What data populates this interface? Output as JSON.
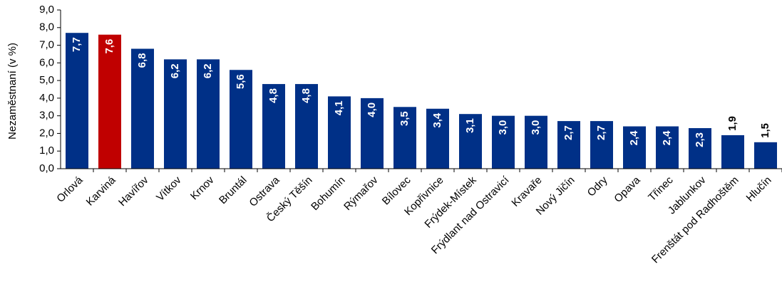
{
  "chart_data": {
    "type": "bar",
    "title": "",
    "xlabel": "",
    "ylabel": "Nezaměstnaní (v %)",
    "ylim": [
      0,
      9
    ],
    "ytick_step": 1,
    "ytick_labels": [
      "0,0",
      "1,0",
      "2,0",
      "3,0",
      "4,0",
      "5,0",
      "6,0",
      "7,0",
      "8,0",
      "9,0"
    ],
    "grid": false,
    "categories": [
      "Orlová",
      "Karviná",
      "Havířov",
      "Vítkov",
      "Krnov",
      "Bruntál",
      "Ostrava",
      "Český Těšín",
      "Bohumín",
      "Rýmařov",
      "Bílovec",
      "Kopřivnice",
      "Frýdek-Místek",
      "Frýdlant nad Ostravicí",
      "Kravaře",
      "Nový Jičín",
      "Odry",
      "Opava",
      "Třinec",
      "Jablunkov",
      "Frenštát pod Radhoštěm",
      "Hlučín"
    ],
    "values": [
      7.7,
      7.6,
      6.8,
      6.2,
      6.2,
      5.6,
      4.8,
      4.8,
      4.1,
      4.0,
      3.5,
      3.4,
      3.1,
      3.0,
      3.0,
      2.7,
      2.7,
      2.4,
      2.4,
      2.3,
      1.9,
      1.5
    ],
    "data_labels": [
      "7,7",
      "7,6",
      "6,8",
      "6,2",
      "6,2",
      "5,6",
      "4,8",
      "4,8",
      "4,1",
      "4,0",
      "3,5",
      "3,4",
      "3,1",
      "3,0",
      "3,0",
      "2,7",
      "2,7",
      "2,4",
      "2,4",
      "2,3",
      "1,9",
      "1,5"
    ],
    "highlight_index": 1,
    "colors": {
      "bar": "#003087",
      "highlight": "#C00000",
      "label_inside": "#ffffff",
      "label_outside": "#000000",
      "axis": "#000000"
    }
  }
}
